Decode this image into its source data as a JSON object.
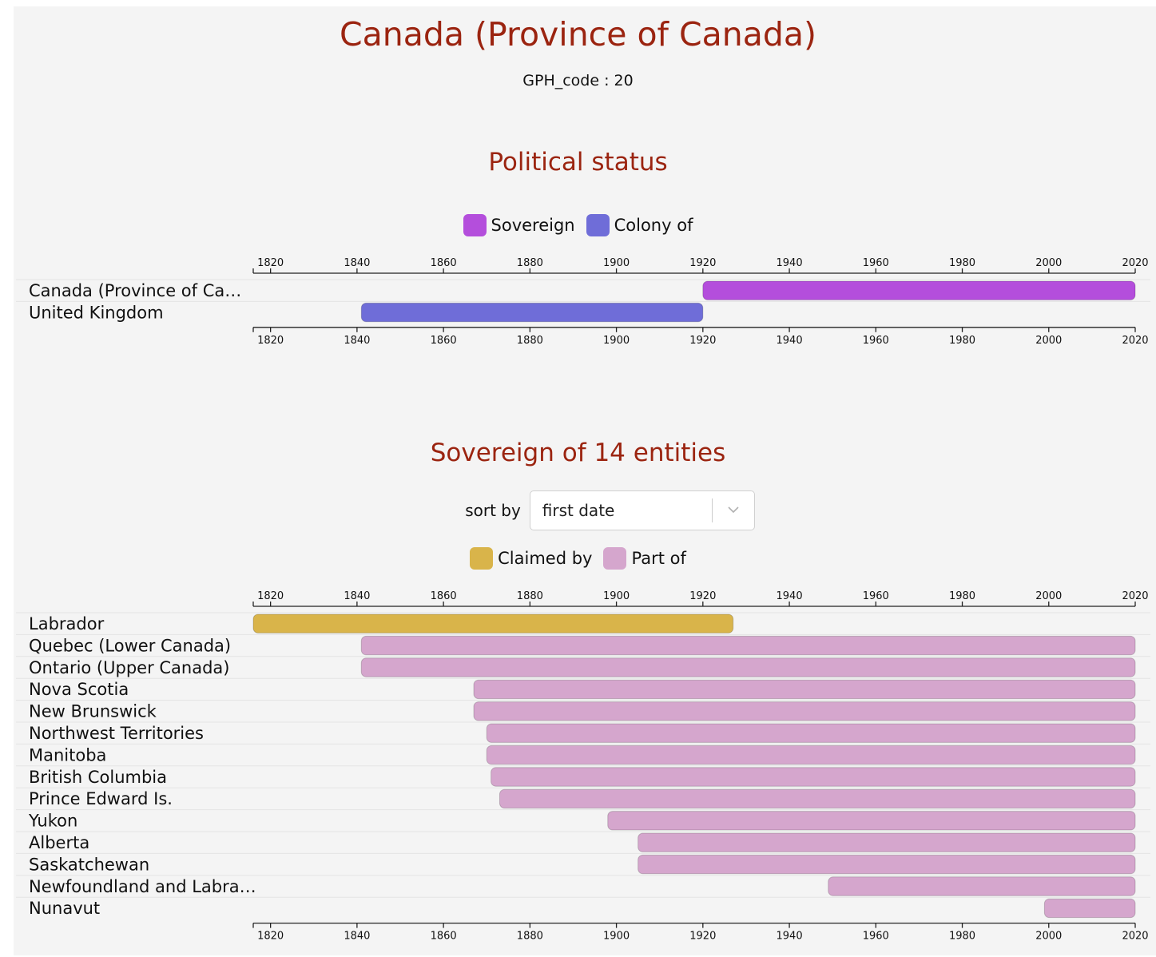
{
  "header": {
    "title": "Canada (Province of Canada)",
    "gph_code": "GPH_code : 20"
  },
  "status_section": {
    "title": "Political status",
    "legend": [
      {
        "label": "Sovereign",
        "color": "#b44edc"
      },
      {
        "label": "Colony of",
        "color": "#6f6dd8"
      }
    ]
  },
  "sovereign_section": {
    "title": "Sovereign of 14 entities",
    "sort_label": "sort by",
    "sort_value": "first date",
    "legend": [
      {
        "label": "Claimed by",
        "color": "#d9b44a"
      },
      {
        "label": "Part of",
        "color": "#d5a6cd"
      }
    ]
  },
  "chart_data": [
    {
      "type": "timeline",
      "xlim": [
        1816,
        2020
      ],
      "ticks": [
        1820,
        1840,
        1860,
        1880,
        1900,
        1920,
        1940,
        1960,
        1980,
        2000,
        2020
      ],
      "rows": [
        {
          "label": "Canada (Province of Ca…",
          "start": 1920,
          "end": 2020,
          "category": "Sovereign",
          "color": "#b44edc"
        },
        {
          "label": "United Kingdom",
          "start": 1841,
          "end": 1920,
          "category": "Colony of",
          "color": "#6f6dd8"
        }
      ]
    },
    {
      "type": "timeline",
      "xlim": [
        1816,
        2020
      ],
      "ticks": [
        1820,
        1840,
        1860,
        1880,
        1900,
        1920,
        1940,
        1960,
        1980,
        2000,
        2020
      ],
      "rows": [
        {
          "label": "Labrador",
          "start": 1816,
          "end": 1927,
          "category": "Claimed by",
          "color": "#d9b44a"
        },
        {
          "label": "Quebec (Lower Canada)",
          "start": 1841,
          "end": 2020,
          "category": "Part of",
          "color": "#d5a6cd"
        },
        {
          "label": "Ontario (Upper Canada)",
          "start": 1841,
          "end": 2020,
          "category": "Part of",
          "color": "#d5a6cd"
        },
        {
          "label": "Nova Scotia",
          "start": 1867,
          "end": 2020,
          "category": "Part of",
          "color": "#d5a6cd"
        },
        {
          "label": "New Brunswick",
          "start": 1867,
          "end": 2020,
          "category": "Part of",
          "color": "#d5a6cd"
        },
        {
          "label": "Northwest Territories",
          "start": 1870,
          "end": 2020,
          "category": "Part of",
          "color": "#d5a6cd"
        },
        {
          "label": "Manitoba",
          "start": 1870,
          "end": 2020,
          "category": "Part of",
          "color": "#d5a6cd"
        },
        {
          "label": "British Columbia",
          "start": 1871,
          "end": 2020,
          "category": "Part of",
          "color": "#d5a6cd"
        },
        {
          "label": "Prince Edward Is.",
          "start": 1873,
          "end": 2020,
          "category": "Part of",
          "color": "#d5a6cd"
        },
        {
          "label": "Yukon",
          "start": 1898,
          "end": 2020,
          "category": "Part of",
          "color": "#d5a6cd"
        },
        {
          "label": "Alberta",
          "start": 1905,
          "end": 2020,
          "category": "Part of",
          "color": "#d5a6cd"
        },
        {
          "label": "Saskatchewan",
          "start": 1905,
          "end": 2020,
          "category": "Part of",
          "color": "#d5a6cd"
        },
        {
          "label": "Newfoundland and Labra…",
          "start": 1949,
          "end": 2020,
          "category": "Part of",
          "color": "#d5a6cd"
        },
        {
          "label": "Nunavut",
          "start": 1999,
          "end": 2020,
          "category": "Part of",
          "color": "#d5a6cd"
        }
      ]
    }
  ]
}
